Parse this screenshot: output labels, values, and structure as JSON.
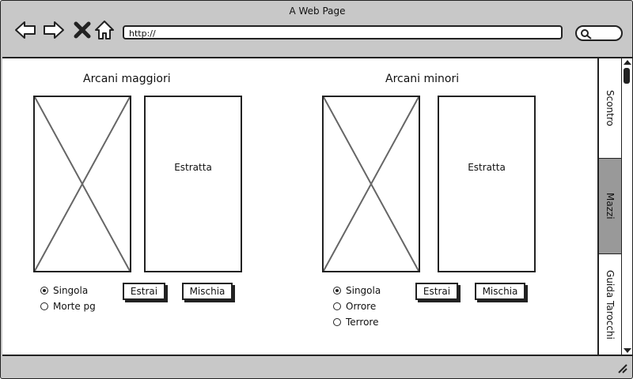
{
  "window": {
    "title": "A Web Page"
  },
  "toolbar": {
    "address": "http://",
    "icons": [
      "back-arrow-icon",
      "forward-arrow-icon",
      "close-x-icon",
      "home-icon",
      "search-icon"
    ]
  },
  "sections": [
    {
      "title": "Arcani maggiori",
      "estratta_label": "Estratta",
      "radios": [
        {
          "label": "Singola",
          "checked": true
        },
        {
          "label": "Morte pg",
          "checked": false
        }
      ],
      "estrai_label": "Estrai",
      "mischia_label": "Mischia"
    },
    {
      "title": "Arcani minori",
      "estratta_label": "Estratta",
      "radios": [
        {
          "label": "Singola",
          "checked": true
        },
        {
          "label": "Orrore",
          "checked": false
        },
        {
          "label": "Terrore",
          "checked": false
        }
      ],
      "estrai_label": "Estrai",
      "mischia_label": "Mischia"
    }
  ],
  "side_tabs": [
    {
      "label": "Scontro",
      "active": false
    },
    {
      "label": "Mazzi",
      "active": true
    },
    {
      "label": "Guida Tarocchi",
      "active": false
    }
  ]
}
